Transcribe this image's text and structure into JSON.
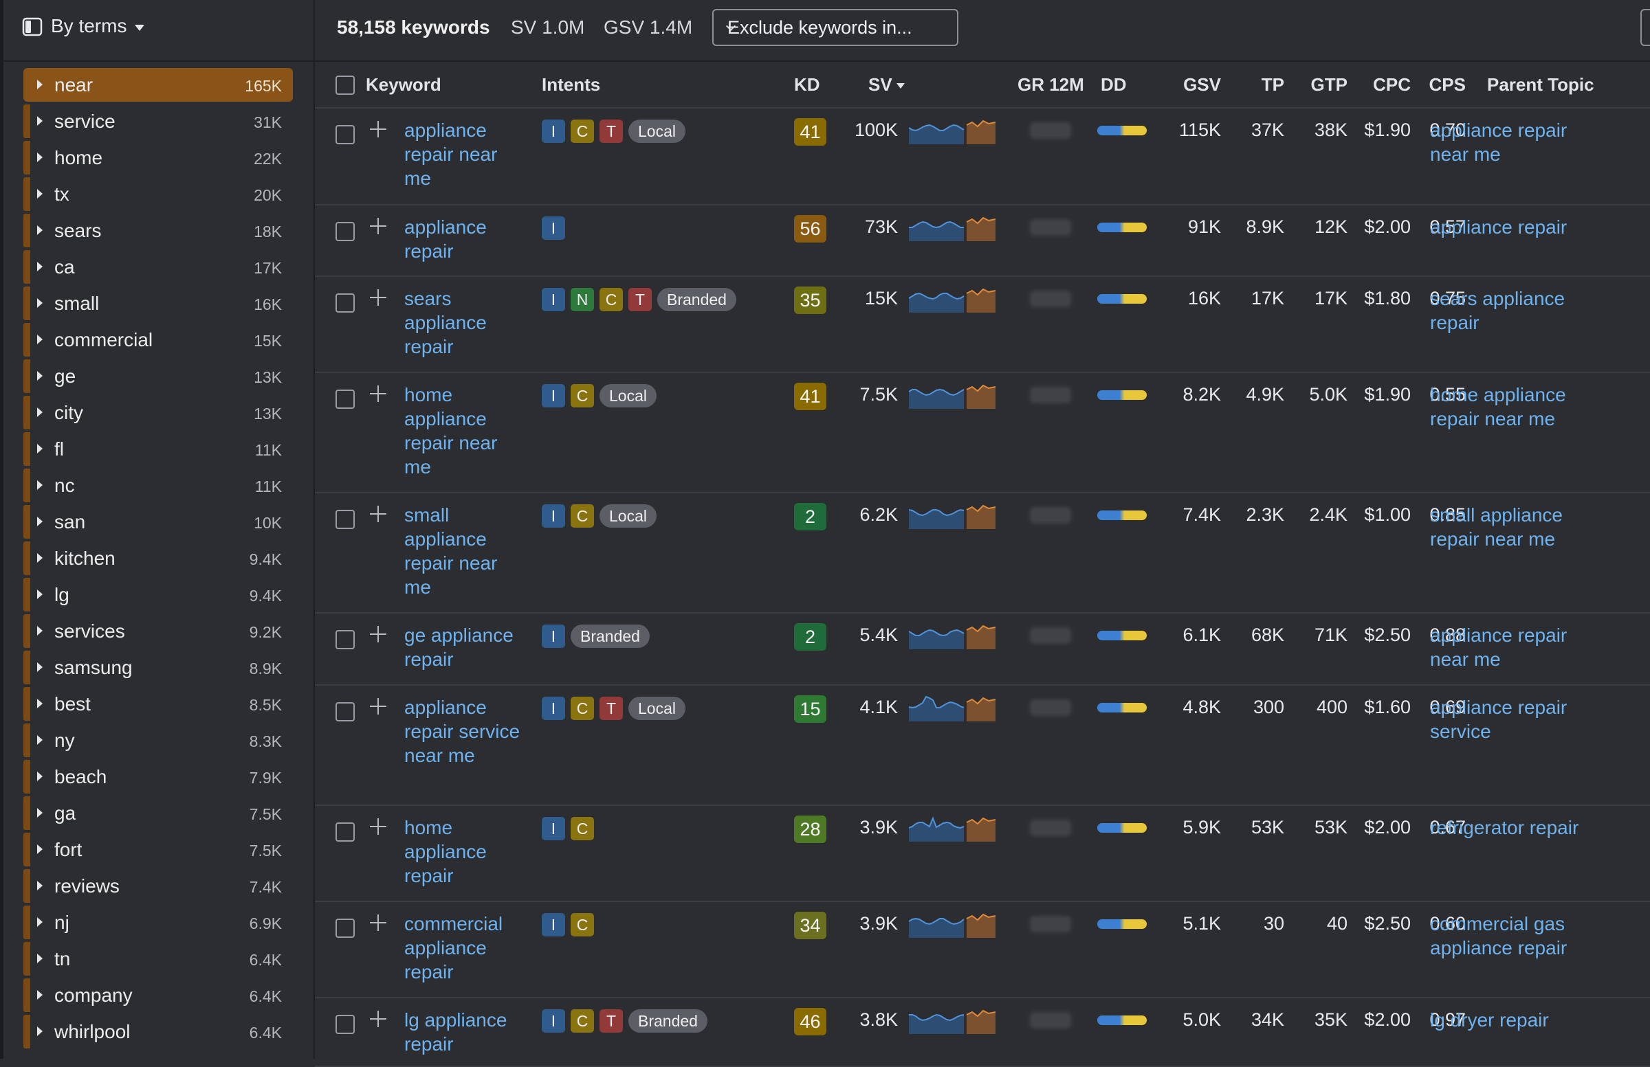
{
  "sidebar": {
    "header_label": "By terms",
    "terms": [
      {
        "name": "near",
        "count": "165K",
        "active": true
      },
      {
        "name": "service",
        "count": "31K"
      },
      {
        "name": "home",
        "count": "22K"
      },
      {
        "name": "tx",
        "count": "20K"
      },
      {
        "name": "sears",
        "count": "18K"
      },
      {
        "name": "ca",
        "count": "17K"
      },
      {
        "name": "small",
        "count": "16K"
      },
      {
        "name": "commercial",
        "count": "15K"
      },
      {
        "name": "ge",
        "count": "13K"
      },
      {
        "name": "city",
        "count": "13K"
      },
      {
        "name": "fl",
        "count": "11K"
      },
      {
        "name": "nc",
        "count": "11K"
      },
      {
        "name": "san",
        "count": "10K"
      },
      {
        "name": "kitchen",
        "count": "9.4K"
      },
      {
        "name": "lg",
        "count": "9.4K"
      },
      {
        "name": "services",
        "count": "9.2K"
      },
      {
        "name": "samsung",
        "count": "8.9K"
      },
      {
        "name": "best",
        "count": "8.5K"
      },
      {
        "name": "ny",
        "count": "8.3K"
      },
      {
        "name": "beach",
        "count": "7.9K"
      },
      {
        "name": "ga",
        "count": "7.5K"
      },
      {
        "name": "fort",
        "count": "7.5K"
      },
      {
        "name": "reviews",
        "count": "7.4K"
      },
      {
        "name": "nj",
        "count": "6.9K"
      },
      {
        "name": "tn",
        "count": "6.4K"
      },
      {
        "name": "company",
        "count": "6.4K"
      },
      {
        "name": "whirlpool",
        "count": "6.4K"
      }
    ]
  },
  "summary": {
    "keywords": "58,158 keywords",
    "sv": "SV 1.0M",
    "gsv": "GSV 1.4M",
    "exclude_label": "Exclude keywords in..."
  },
  "table": {
    "columns": {
      "keyword": "Keyword",
      "intents": "Intents",
      "kd": "KD",
      "sv": "SV",
      "gr12m": "GR 12M",
      "dd": "DD",
      "gsv": "GSV",
      "tp": "TP",
      "gtp": "GTP",
      "cpc": "CPC",
      "cps": "CPS",
      "parent": "Parent Topic"
    },
    "kd_colors": {
      "hard": "#8a6b00",
      "harder": "#8a5a10",
      "easy": "#1f6b3a",
      "medium": "#5a7a25",
      "med2": "#6b7a20"
    },
    "rows": [
      {
        "keyword": "appliance repair near me",
        "intents": [
          "I",
          "C",
          "T"
        ],
        "pill": "Local",
        "kd": "41",
        "kd_color": "#8a6b00",
        "sv": "100K",
        "gsv": "115K",
        "tp": "37K",
        "gtp": "38K",
        "cpc": "$1.90",
        "cps": "0.70",
        "parent": "appliance repair near me"
      },
      {
        "keyword": "appliance repair",
        "intents": [
          "I"
        ],
        "pill": "",
        "kd": "56",
        "kd_color": "#8a5a10",
        "sv": "73K",
        "gsv": "91K",
        "tp": "8.9K",
        "gtp": "12K",
        "cpc": "$2.00",
        "cps": "0.57",
        "parent": "appliance repair"
      },
      {
        "keyword": "sears appliance repair",
        "intents": [
          "I",
          "N",
          "C",
          "T"
        ],
        "pill": "Branded",
        "kd": "35",
        "kd_color": "#6e6e12",
        "sv": "15K",
        "gsv": "16K",
        "tp": "17K",
        "gtp": "17K",
        "cpc": "$1.80",
        "cps": "0.75",
        "parent": "sears appliance repair"
      },
      {
        "keyword": "home appliance repair near me",
        "intents": [
          "I",
          "C"
        ],
        "pill": "Local",
        "kd": "41",
        "kd_color": "#8a6b00",
        "sv": "7.5K",
        "gsv": "8.2K",
        "tp": "4.9K",
        "gtp": "5.0K",
        "cpc": "$1.90",
        "cps": "0.55",
        "parent": "home appliance repair near me"
      },
      {
        "keyword": "small appliance repair near me",
        "intents": [
          "I",
          "C"
        ],
        "pill": "Local",
        "kd": "2",
        "kd_color": "#1f6b3a",
        "sv": "6.2K",
        "gsv": "7.4K",
        "tp": "2.3K",
        "gtp": "2.4K",
        "cpc": "$1.00",
        "cps": "0.85",
        "parent": "small appliance repair near me"
      },
      {
        "keyword": "ge appliance repair",
        "intents": [
          "I"
        ],
        "pill": "Branded",
        "kd": "2",
        "kd_color": "#1f6b3a",
        "sv": "5.4K",
        "gsv": "6.1K",
        "tp": "68K",
        "gtp": "71K",
        "cpc": "$2.50",
        "cps": "0.88",
        "parent": "appliance repair near me"
      },
      {
        "keyword": "appliance repair service near me",
        "intents": [
          "I",
          "C",
          "T"
        ],
        "pill": "Local",
        "kd": "15",
        "kd_color": "#2f7a33",
        "sv": "4.1K",
        "gsv": "4.8K",
        "tp": "300",
        "gtp": "400",
        "cpc": "$1.60",
        "cps": "0.69",
        "parent": "appliance repair service"
      },
      {
        "keyword": "home appliance repair",
        "intents": [
          "I",
          "C"
        ],
        "pill": "",
        "kd": "28",
        "kd_color": "#4f7a25",
        "sv": "3.9K",
        "gsv": "5.9K",
        "tp": "53K",
        "gtp": "53K",
        "cpc": "$2.00",
        "cps": "0.67",
        "parent": "refrigerator repair"
      },
      {
        "keyword": "commercial appliance repair",
        "intents": [
          "I",
          "C"
        ],
        "pill": "",
        "kd": "34",
        "kd_color": "#6a7020",
        "sv": "3.9K",
        "gsv": "5.1K",
        "tp": "30",
        "gtp": "40",
        "cpc": "$2.50",
        "cps": "0.60",
        "parent": "commercial gas appliance repair"
      },
      {
        "keyword": "lg appliance repair",
        "intents": [
          "I",
          "C",
          "T"
        ],
        "pill": "Branded",
        "kd": "46",
        "kd_color": "#8a6b00",
        "sv": "3.8K",
        "gsv": "5.0K",
        "tp": "34K",
        "gtp": "35K",
        "cpc": "$2.00",
        "cps": "0.97",
        "parent": "lg dryer repair"
      }
    ]
  }
}
